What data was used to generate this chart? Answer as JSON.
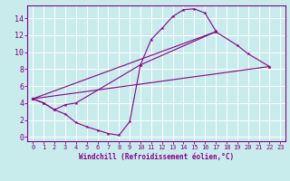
{
  "xlabel": "Windchill (Refroidissement éolien,°C)",
  "bg_color": "#c8ecec",
  "line_color": "#880088",
  "xlim": [
    -0.5,
    23.5
  ],
  "ylim": [
    -0.5,
    15.5
  ],
  "xticks": [
    0,
    1,
    2,
    3,
    4,
    5,
    6,
    7,
    8,
    9,
    10,
    11,
    12,
    13,
    14,
    15,
    16,
    17,
    18,
    19,
    20,
    21,
    22,
    23
  ],
  "yticks": [
    0,
    2,
    4,
    6,
    8,
    10,
    12,
    14
  ],
  "s1x": [
    0,
    1,
    2,
    3,
    4,
    5,
    6,
    7,
    8,
    9,
    10,
    11,
    12,
    13,
    14,
    15,
    16,
    17
  ],
  "s1y": [
    4.5,
    4.0,
    3.2,
    2.7,
    1.7,
    1.2,
    0.8,
    0.4,
    0.2,
    1.8,
    8.5,
    11.5,
    12.8,
    14.2,
    15.0,
    15.1,
    14.6,
    12.5
  ],
  "s2x": [
    0,
    1,
    2,
    3,
    4,
    10,
    17,
    19,
    20,
    22
  ],
  "s2y": [
    4.5,
    4.0,
    3.2,
    3.8,
    4.0,
    8.5,
    12.4,
    10.8,
    9.8,
    8.3
  ],
  "s3x": [
    0,
    22
  ],
  "s3y": [
    4.5,
    8.3
  ],
  "s4x": [
    0,
    17
  ],
  "s4y": [
    4.5,
    12.4
  ]
}
